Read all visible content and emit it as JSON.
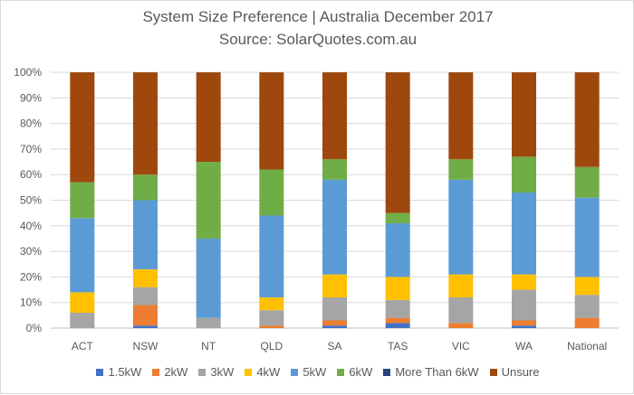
{
  "chart_data": {
    "type": "bar",
    "stacked": true,
    "normalized": true,
    "title": "System Size Preference  | Australia December 2017",
    "subtitle": "Source: SolarQuotes.com.au",
    "categories": [
      "ACT",
      "NSW",
      "NT",
      "QLD",
      "SA",
      "TAS",
      "VIC",
      "WA",
      "National"
    ],
    "ylim": [
      0,
      100
    ],
    "yticks": [
      "0%",
      "10%",
      "20%",
      "30%",
      "40%",
      "50%",
      "60%",
      "70%",
      "80%",
      "90%",
      "100%"
    ],
    "grid": true,
    "legend_position": "bottom",
    "series": [
      {
        "name": "1.5kW",
        "color": "#4472c4",
        "values": [
          0,
          1,
          0,
          0,
          1,
          2,
          0,
          1,
          0
        ]
      },
      {
        "name": "2kW",
        "color": "#ed7d31",
        "values": [
          0,
          8,
          0,
          1,
          2,
          2,
          2,
          2,
          4
        ]
      },
      {
        "name": "3kW",
        "color": "#a5a5a5",
        "values": [
          6,
          7,
          4,
          6,
          9,
          7,
          10,
          12,
          9
        ]
      },
      {
        "name": "4kW",
        "color": "#ffc000",
        "values": [
          8,
          7,
          0,
          5,
          9,
          9,
          9,
          6,
          7
        ]
      },
      {
        "name": "5kW",
        "color": "#5b9bd5",
        "values": [
          29,
          27,
          31,
          32,
          37,
          21,
          37,
          32,
          31
        ]
      },
      {
        "name": "6kW",
        "color": "#70ad47",
        "values": [
          14,
          10,
          30,
          18,
          8,
          4,
          8,
          14,
          12
        ]
      },
      {
        "name": "More Than 6kW",
        "color": "#264478",
        "values": [
          0,
          0,
          0,
          0,
          0,
          0,
          0,
          0,
          0
        ]
      },
      {
        "name": "Unsure",
        "color": "#9e480e",
        "values": [
          43,
          40,
          35,
          38,
          34,
          55,
          34,
          33,
          37
        ]
      }
    ]
  }
}
